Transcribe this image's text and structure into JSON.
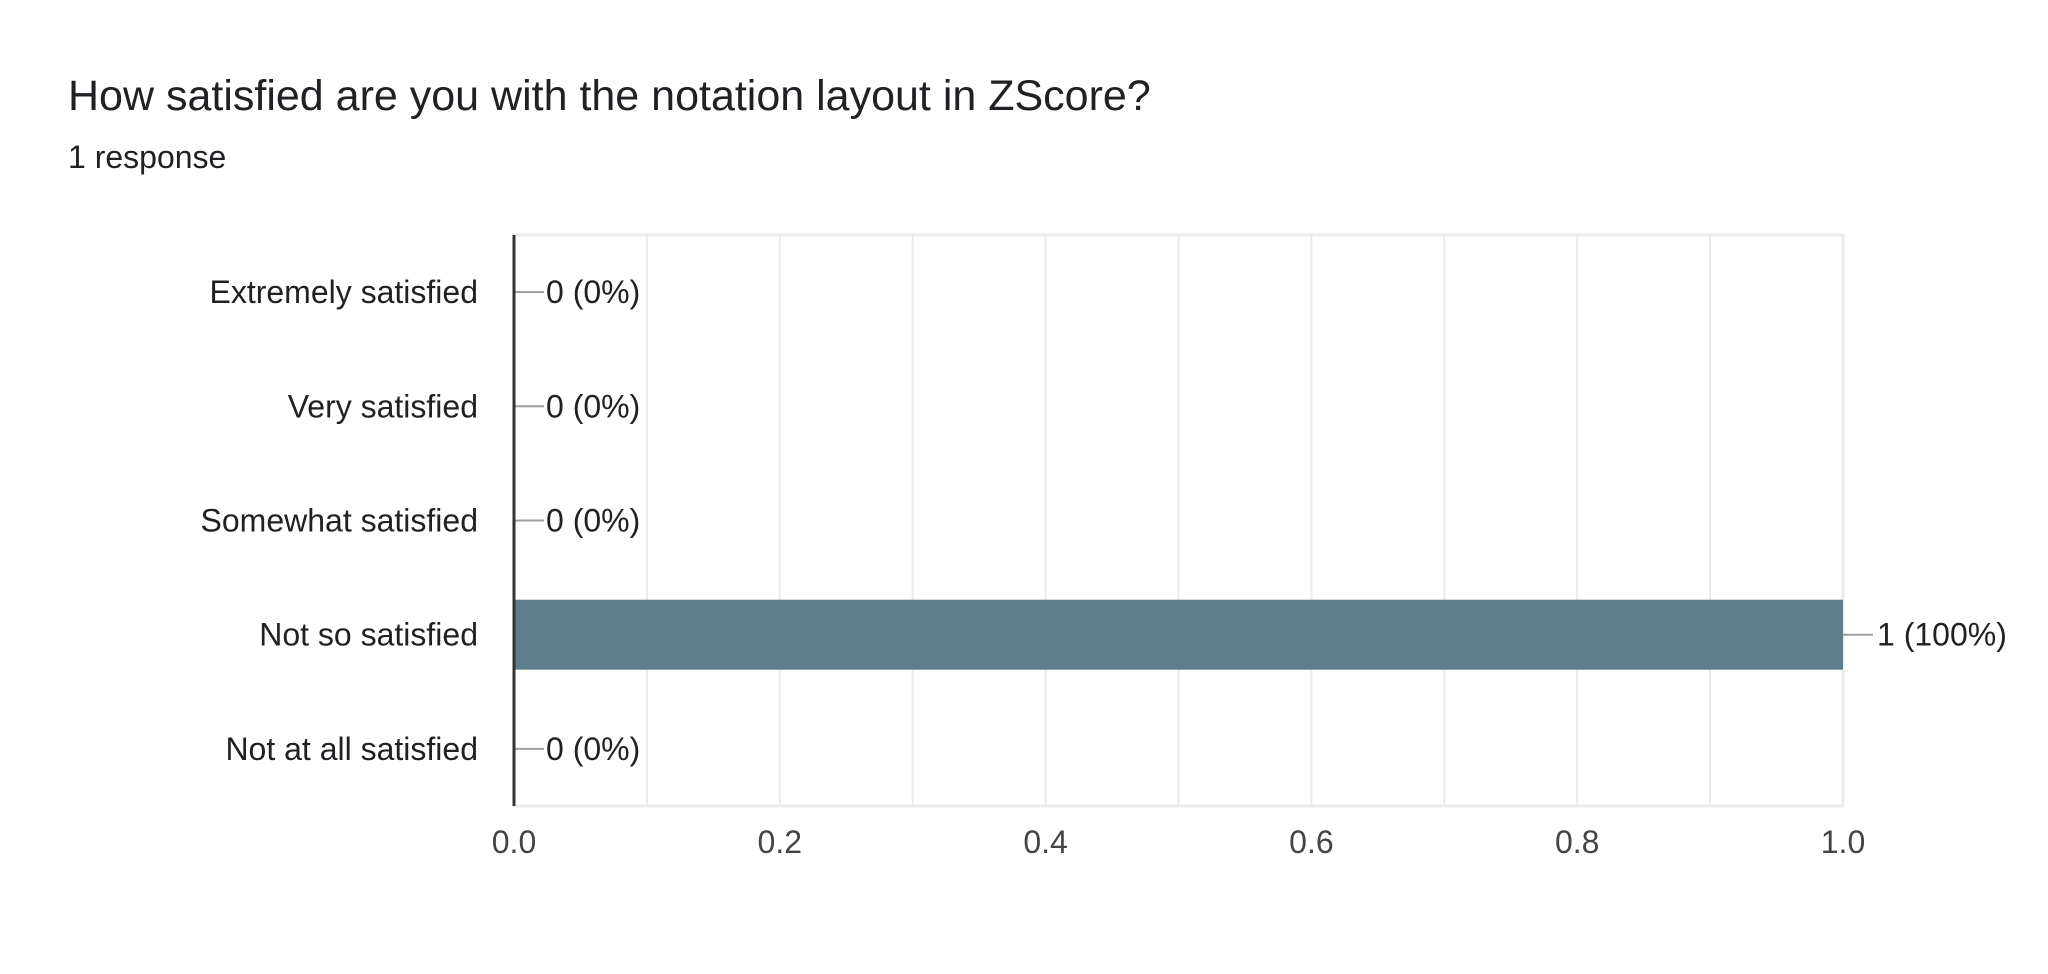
{
  "header": {
    "title": "How satisfied are you with the notation layout in ZScore?",
    "response_count": "1 response"
  },
  "chart_data": {
    "type": "bar",
    "orientation": "horizontal",
    "categories": [
      "Extremely satisfied",
      "Very satisfied",
      "Somewhat satisfied",
      "Not so satisfied",
      "Not at all satisfied"
    ],
    "values": [
      0,
      0,
      0,
      1,
      0
    ],
    "value_labels": [
      "0 (0%)",
      "0 (0%)",
      "0 (0%)",
      "1 (100%)",
      "0 (0%)"
    ],
    "xlim": [
      0,
      1
    ],
    "xticks": [
      0.0,
      0.2,
      0.4,
      0.6,
      0.8,
      1.0
    ],
    "xtick_labels": [
      "0.0",
      "0.2",
      "0.4",
      "0.6",
      "0.8",
      "1.0"
    ],
    "grid": true,
    "colors": {
      "bar": "#607d8b",
      "grid": "#ebebeb",
      "axis": "#333333",
      "leader": "#9e9e9e"
    }
  }
}
